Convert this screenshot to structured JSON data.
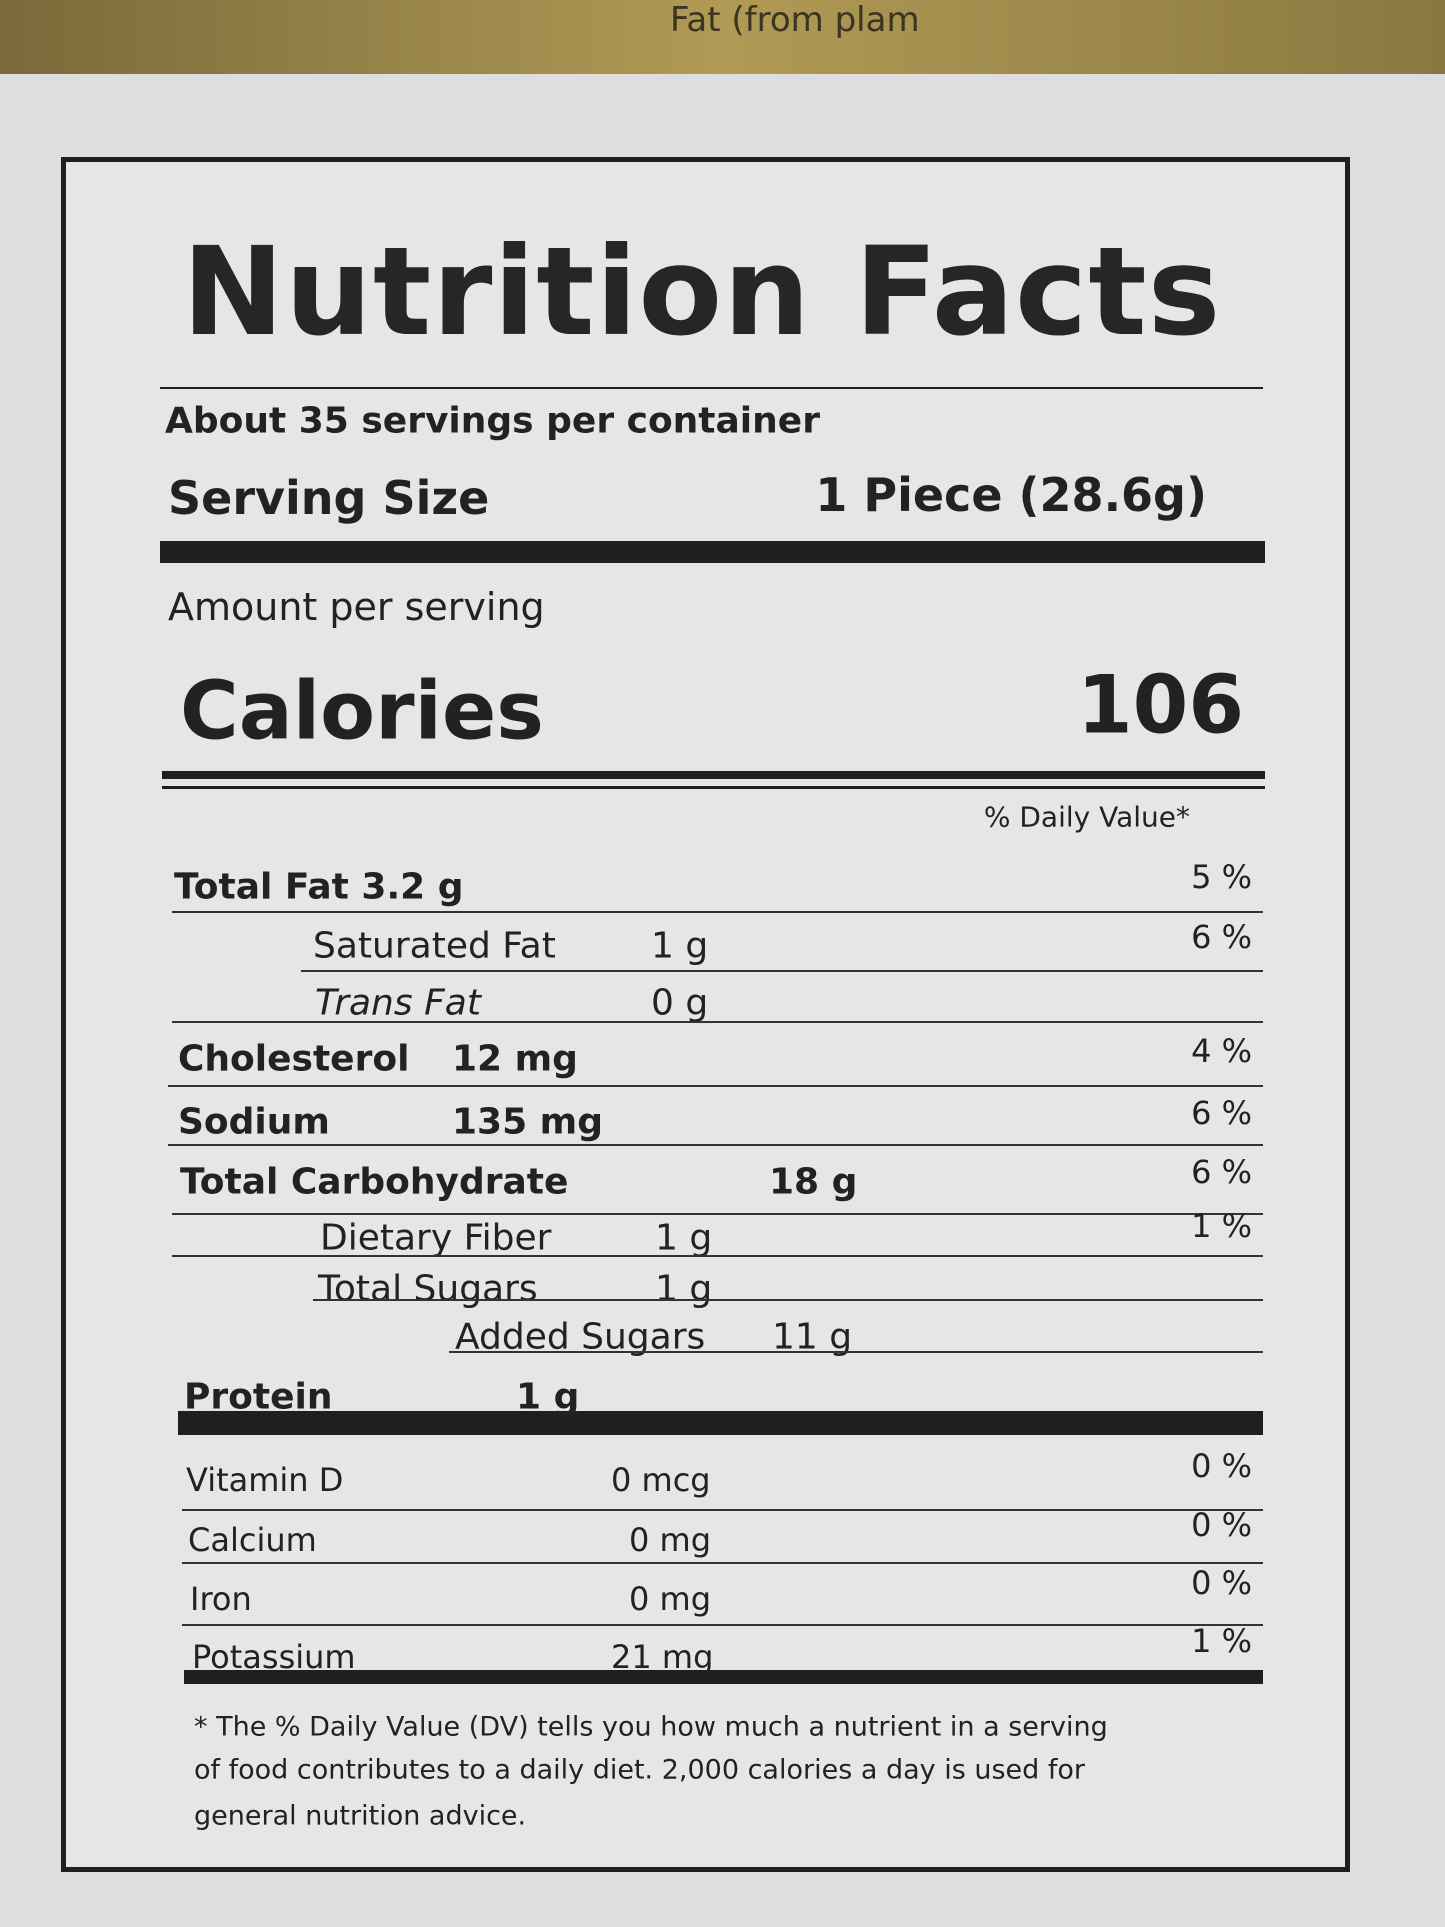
{
  "background_text": "Fat (from plam",
  "header": {
    "title": "Nutrition Facts",
    "servings": "About 35 servings per container",
    "serving_size_label": "Serving Size",
    "serving_size_value": "1 Piece (28.6g)",
    "amount_per_serving": "Amount per serving",
    "calories_label": "Calories",
    "calories_value": "106",
    "daily_value_heading": "% Daily Value*"
  },
  "nutrients": [
    {
      "name": "Total Fat 3.2 g",
      "dv": "5 %"
    },
    {
      "name": "Saturated Fat",
      "amount": "1 g",
      "dv": "6 %"
    },
    {
      "name": "Trans Fat",
      "amount": "0 g"
    },
    {
      "name": "Cholesterol",
      "amount": "12 mg",
      "dv": "4 %"
    },
    {
      "name": "Sodium",
      "amount": "135 mg",
      "dv": "6 %"
    },
    {
      "name": "Total Carbohydrate",
      "amount": "18 g",
      "dv": "6 %"
    },
    {
      "name": "Dietary Fiber",
      "amount": "1 g",
      "dv": "1 %"
    },
    {
      "name": "Total Sugars",
      "amount": "1 g"
    },
    {
      "name": "Added Sugars",
      "amount": "11 g"
    },
    {
      "name": "Protein",
      "amount": "1 g"
    },
    {
      "name": "Vitamin D",
      "amount": "0 mcg",
      "dv": "0 %"
    },
    {
      "name": "Calcium",
      "amount": "0 mg",
      "dv": "0 %"
    },
    {
      "name": "Iron",
      "amount": "0 mg",
      "dv": "0 %"
    },
    {
      "name": "Potassium",
      "amount": "21 mg",
      "dv": "1 %"
    }
  ],
  "footnote": [
    "* The % Daily Value (DV) tells you how much a nutrient in a serving",
    "of food contributes to a daily diet. 2,000 calories a day is used for",
    "general nutrition advice."
  ]
}
